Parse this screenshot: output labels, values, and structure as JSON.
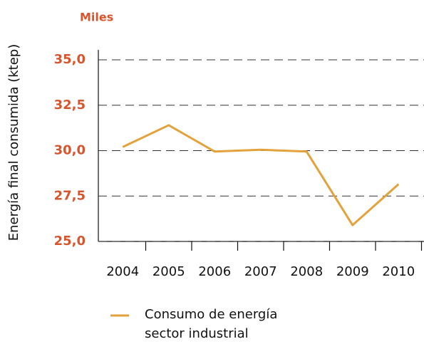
{
  "chart_data": {
    "type": "line",
    "unit_label": "Miles",
    "y_label": "Energía final consumida (ktep)",
    "categories": [
      "2004",
      "2005",
      "2006",
      "2007",
      "2008",
      "2009",
      "2010"
    ],
    "series": [
      {
        "name": "Consumo de energía sector industrial",
        "color": "#e3a23b",
        "values": [
          30.2,
          31.4,
          29.95,
          30.05,
          29.95,
          25.9,
          28.15
        ]
      }
    ],
    "ylim": [
      25,
      35
    ],
    "yticks": [
      {
        "value": 25,
        "label": "25,0"
      },
      {
        "value": 27.5,
        "label": "27,5"
      },
      {
        "value": 30,
        "label": "30,0"
      },
      {
        "value": 32.5,
        "label": "32,5"
      },
      {
        "value": 35,
        "label": "35,0"
      }
    ],
    "tick_color": "#d9532b",
    "grid": true
  }
}
